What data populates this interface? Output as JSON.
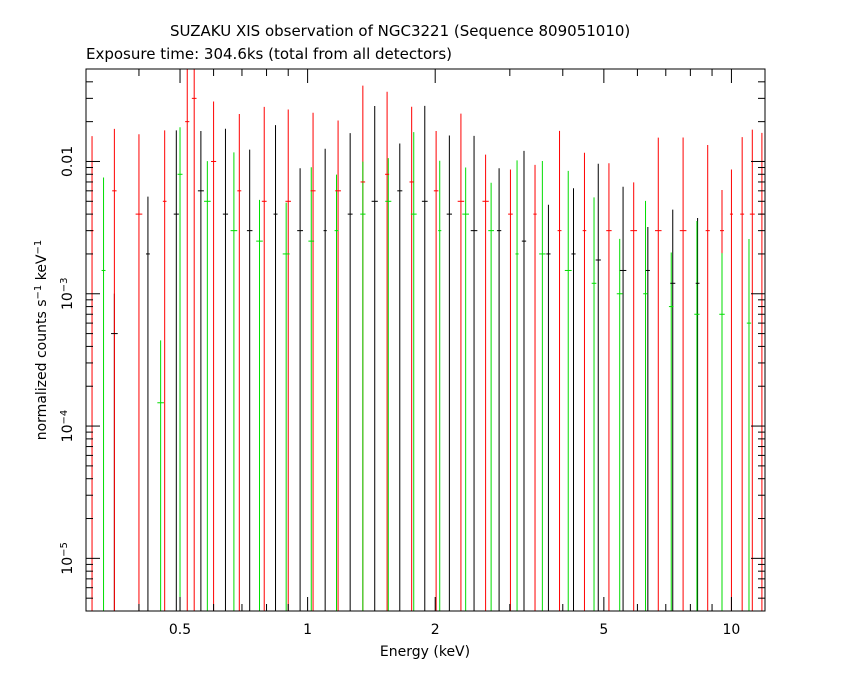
{
  "title": "SUZAKU XIS observation of NGC3221 (Sequence 809051010)",
  "subtitle": "Exposure time: 304.6ks (total from all detectors)",
  "chart_data": {
    "type": "scatter",
    "title": "SUZAKU XIS observation of NGC3221 (Sequence 809051010)",
    "subtitle": "Exposure time: 304.6ks (total from all detectors)",
    "xlabel": "Energy (keV)",
    "ylabel": "normalized counts s^-1 keV^-1",
    "xscale": "log",
    "yscale": "log",
    "xlim": [
      0.3,
      12
    ],
    "ylim": [
      4e-06,
      0.05
    ],
    "grid": false,
    "x_ticks": [
      {
        "value": 0.5,
        "label": "0.5"
      },
      {
        "value": 1,
        "label": "1"
      },
      {
        "value": 2,
        "label": "2"
      },
      {
        "value": 5,
        "label": "5"
      },
      {
        "value": 10,
        "label": "10"
      }
    ],
    "y_ticks": [
      {
        "value": 0.01,
        "label": "0.01"
      },
      {
        "value": 0.001,
        "label": "10",
        "exp": "−3"
      },
      {
        "value": 0.0001,
        "label": "10",
        "exp": "−4"
      },
      {
        "value": 1e-05,
        "label": "10",
        "exp": "−5"
      }
    ],
    "series": [
      {
        "color": "#000000",
        "x": [
          0.35,
          0.42,
          0.49,
          0.56,
          0.64,
          0.73,
          0.84,
          0.96,
          1.1,
          1.26,
          1.44,
          1.65,
          1.89,
          2.16,
          2.47,
          2.83,
          3.24,
          3.7,
          4.24,
          4.85,
          5.55,
          6.35,
          7.27,
          8.32
        ],
        "y": [
          0.0005,
          0.002,
          0.004,
          0.006,
          0.004,
          0.003,
          0.004,
          0.003,
          0.003,
          0.004,
          0.005,
          0.006,
          0.005,
          0.004,
          0.003,
          0.003,
          0.0025,
          0.002,
          0.002,
          0.0018,
          0.0015,
          0.0015,
          0.0012,
          0.0012
        ]
      },
      {
        "color": "#ff0000",
        "x": [
          0.31,
          0.35,
          0.4,
          0.46,
          0.52,
          0.54,
          0.6,
          0.69,
          0.79,
          0.9,
          1.03,
          1.18,
          1.35,
          1.54,
          1.76,
          2.01,
          2.3,
          2.63,
          3.01,
          3.44,
          3.93,
          4.5,
          5.14,
          5.88,
          6.72,
          7.69,
          8.79,
          9.5,
          10.0,
          10.6,
          11.2,
          11.8
        ],
        "y": [
          0.003,
          0.006,
          0.004,
          0.005,
          0.02,
          0.03,
          0.01,
          0.006,
          0.005,
          0.005,
          0.006,
          0.006,
          0.007,
          0.008,
          0.007,
          0.006,
          0.005,
          0.005,
          0.004,
          0.004,
          0.003,
          0.003,
          0.003,
          0.003,
          0.003,
          0.003,
          0.003,
          0.003,
          0.004,
          0.004,
          0.004,
          0.004
        ]
      },
      {
        "color": "#00dd00",
        "x": [
          0.33,
          0.45,
          0.5,
          0.58,
          0.67,
          0.77,
          0.89,
          1.02,
          1.17,
          1.35,
          1.55,
          1.78,
          2.05,
          2.36,
          2.71,
          3.12,
          3.58,
          4.12,
          4.74,
          5.45,
          6.27,
          7.21,
          8.29,
          9.5,
          11.0
        ],
        "y": [
          0.0015,
          0.00015,
          0.008,
          0.005,
          0.003,
          0.0025,
          0.002,
          0.0025,
          0.003,
          0.004,
          0.005,
          0.004,
          0.003,
          0.004,
          0.003,
          0.002,
          0.002,
          0.0015,
          0.0012,
          0.001,
          0.001,
          0.0008,
          0.0007,
          0.0007,
          0.0006
        ]
      }
    ]
  }
}
